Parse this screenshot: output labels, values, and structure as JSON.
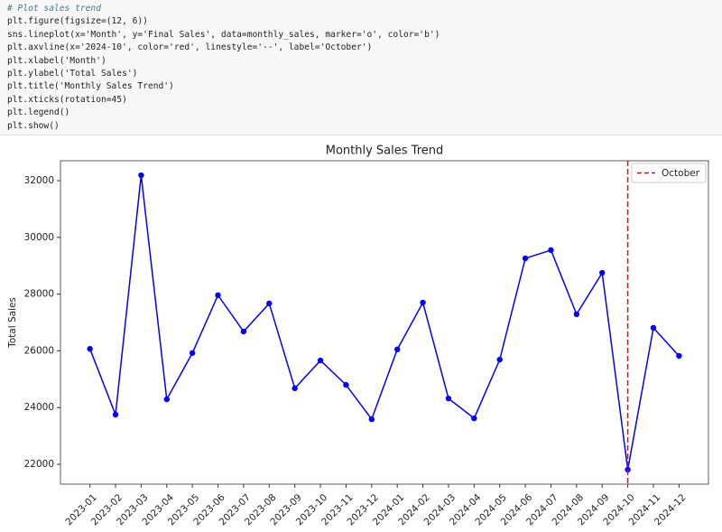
{
  "code": {
    "lines": [
      "# Plot sales trend",
      "plt.figure(figsize=(12, 6))",
      "sns.lineplot(x='Month', y='Final Sales', data=monthly_sales, marker='o', color='b')",
      "plt.axvline(x='2024-10', color='red', linestyle='--', label='October')",
      "plt.xlabel('Month')",
      "plt.ylabel('Total Sales')",
      "plt.title('Monthly Sales Trend')",
      "plt.xticks(rotation=45)",
      "plt.legend()",
      "plt.show()"
    ]
  },
  "chart_data": {
    "type": "line",
    "title": "Monthly Sales Trend",
    "ylabel": "Total Sales",
    "categories": [
      "2023-01",
      "2023-02",
      "2023-03",
      "2023-04",
      "2023-05",
      "2023-06",
      "2023-07",
      "2023-08",
      "2023-09",
      "2023-10",
      "2023-11",
      "2023-12",
      "2024-01",
      "2024-02",
      "2024-03",
      "2024-04",
      "2024-05",
      "2024-06",
      "2024-07",
      "2024-08",
      "2024-09",
      "2024-10",
      "2024-11",
      "2024-12"
    ],
    "values": [
      26070,
      23750,
      32190,
      24290,
      25920,
      27960,
      26680,
      27670,
      24680,
      25660,
      24800,
      23590,
      26050,
      27700,
      24320,
      23620,
      25690,
      29260,
      29550,
      27290,
      28750,
      21810,
      26810,
      25820
    ],
    "color": "#0000ff",
    "ylim": [
      21300,
      32700
    ],
    "yticks": [
      22000,
      24000,
      26000,
      28000,
      30000,
      32000
    ],
    "vline": {
      "x": "2024-10",
      "color": "#ff0000",
      "label": "October"
    },
    "legend": "upper right"
  }
}
